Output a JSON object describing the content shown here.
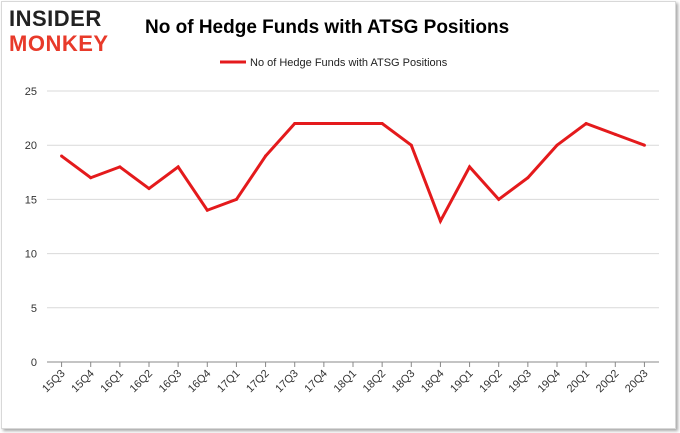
{
  "brand": {
    "line1": "INSIDER",
    "line2": "MONKEY"
  },
  "colors": {
    "series": "#e41a1c",
    "grid": "#d9d9d9",
    "axis": "#888888",
    "brand_red": "#e83a2a"
  },
  "chart_data": {
    "type": "line",
    "title": "No of Hedge Funds with ATSG Positions",
    "xlabel": "",
    "ylabel": "",
    "categories": [
      "15Q3",
      "15Q4",
      "16Q1",
      "16Q2",
      "16Q3",
      "16Q4",
      "17Q1",
      "17Q2",
      "17Q3",
      "17Q4",
      "18Q1",
      "18Q2",
      "18Q3",
      "18Q4",
      "19Q1",
      "19Q2",
      "19Q3",
      "19Q4",
      "20Q1",
      "20Q2",
      "20Q3"
    ],
    "series": [
      {
        "name": "No of Hedge Funds with ATSG Positions",
        "values": [
          19,
          17,
          18,
          16,
          18,
          14,
          15,
          19,
          22,
          22,
          22,
          22,
          20,
          13,
          18,
          15,
          17,
          20,
          22,
          21,
          20
        ]
      }
    ],
    "ylim": [
      0,
      25
    ],
    "yticks": [
      0,
      5,
      10,
      15,
      20,
      25
    ],
    "grid": true,
    "legend": "top-center"
  }
}
